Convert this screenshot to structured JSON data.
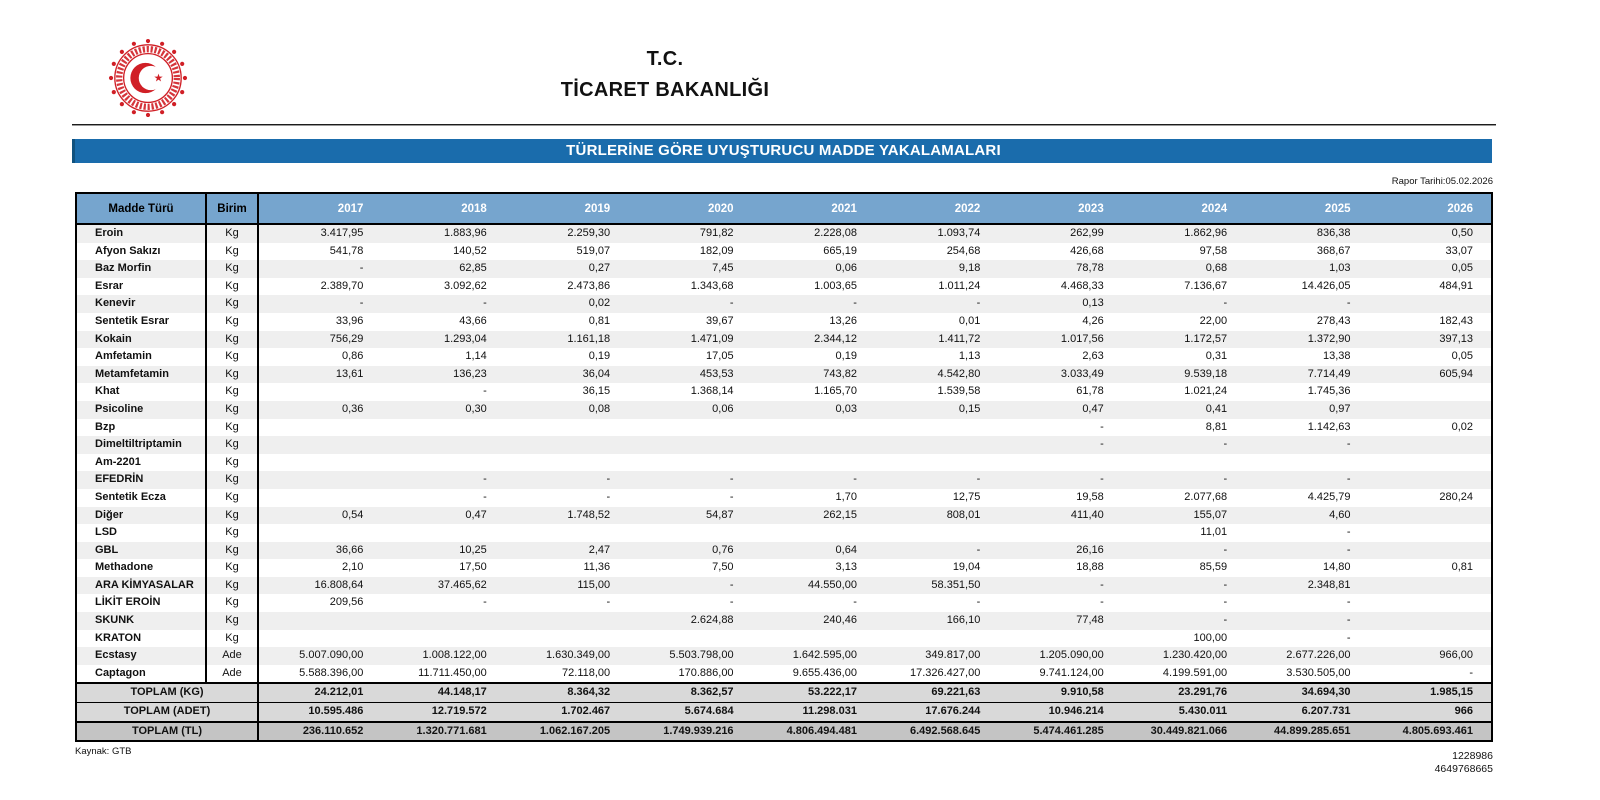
{
  "page": {
    "org_top": "T.C.",
    "org_bottom": "TİCARET BAKANLIĞI",
    "report_title": "TÜRLERİNE GÖRE UYUŞTURUCU MADDE YAKALAMALARI",
    "report_date": "Rapor Tarihi:05.02.2026",
    "source": "Kaynak: GTB",
    "footer_numbers": [
      "1228986",
      "4649768665"
    ]
  },
  "colors": {
    "title_bar_blue": "#1a6cac",
    "header_blue": "#76a5ce",
    "logo_red": "#d01f26",
    "total_row_gray": "#d9d9d9",
    "total_tl_gray": "#c4c4c4",
    "zebra_gray": "#efefef"
  },
  "table": {
    "col_headers": [
      "Madde Türü",
      "Birim",
      "2017",
      "2018",
      "2019",
      "2020",
      "2021",
      "2022",
      "2023",
      "2024",
      "2025",
      "2026"
    ],
    "rows": [
      {
        "name": "Eroin",
        "unit": "Kg",
        "values": [
          "3.417,95",
          "1.883,96",
          "2.259,30",
          "791,82",
          "2.228,08",
          "1.093,74",
          "262,99",
          "1.862,96",
          "836,38",
          "0,50"
        ]
      },
      {
        "name": "Afyon Sakızı",
        "unit": "Kg",
        "values": [
          "541,78",
          "140,52",
          "519,07",
          "182,09",
          "665,19",
          "254,68",
          "426,68",
          "97,58",
          "368,67",
          "33,07"
        ]
      },
      {
        "name": "Baz Morfin",
        "unit": "Kg",
        "values": [
          "-",
          "62,85",
          "0,27",
          "7,45",
          "0,06",
          "9,18",
          "78,78",
          "0,68",
          "1,03",
          "0,05"
        ]
      },
      {
        "name": "Esrar",
        "unit": "Kg",
        "values": [
          "2.389,70",
          "3.092,62",
          "2.473,86",
          "1.343,68",
          "1.003,65",
          "1.011,24",
          "4.468,33",
          "7.136,67",
          "14.426,05",
          "484,91"
        ]
      },
      {
        "name": "Kenevir",
        "unit": "Kg",
        "values": [
          "-",
          "-",
          "0,02",
          "-",
          "-",
          "-",
          "0,13",
          "-",
          "-",
          ""
        ]
      },
      {
        "name": "Sentetik Esrar",
        "unit": "Kg",
        "values": [
          "33,96",
          "43,66",
          "0,81",
          "39,67",
          "13,26",
          "0,01",
          "4,26",
          "22,00",
          "278,43",
          "182,43"
        ]
      },
      {
        "name": "Kokain",
        "unit": "Kg",
        "values": [
          "756,29",
          "1.293,04",
          "1.161,18",
          "1.471,09",
          "2.344,12",
          "1.411,72",
          "1.017,56",
          "1.172,57",
          "1.372,90",
          "397,13"
        ]
      },
      {
        "name": "Amfetamin",
        "unit": "Kg",
        "values": [
          "0,86",
          "1,14",
          "0,19",
          "17,05",
          "0,19",
          "1,13",
          "2,63",
          "0,31",
          "13,38",
          "0,05"
        ]
      },
      {
        "name": "Metamfetamin",
        "unit": "Kg",
        "values": [
          "13,61",
          "136,23",
          "36,04",
          "453,53",
          "743,82",
          "4.542,80",
          "3.033,49",
          "9.539,18",
          "7.714,49",
          "605,94"
        ]
      },
      {
        "name": "Khat",
        "unit": "Kg",
        "values": [
          "",
          "-",
          "36,15",
          "1.368,14",
          "1.165,70",
          "1.539,58",
          "61,78",
          "1.021,24",
          "1.745,36",
          ""
        ]
      },
      {
        "name": "Psicoline",
        "unit": "Kg",
        "values": [
          "0,36",
          "0,30",
          "0,08",
          "0,06",
          "0,03",
          "0,15",
          "0,47",
          "0,41",
          "0,97",
          ""
        ]
      },
      {
        "name": "Bzp",
        "unit": "Kg",
        "values": [
          "",
          "",
          "",
          "",
          "",
          "",
          "-",
          "8,81",
          "1.142,63",
          "0,02"
        ]
      },
      {
        "name": "Dimeltiltriptamin",
        "unit": "Kg",
        "values": [
          "",
          "",
          "",
          "",
          "",
          "",
          "-",
          "-",
          "-",
          ""
        ]
      },
      {
        "name": "Am-2201",
        "unit": "Kg",
        "values": [
          "",
          "",
          "",
          "",
          "",
          "",
          "",
          "",
          "",
          ""
        ]
      },
      {
        "name": "EFEDRİN",
        "unit": "Kg",
        "values": [
          "",
          "-",
          "-",
          "-",
          "-",
          "-",
          "-",
          "-",
          "-",
          ""
        ]
      },
      {
        "name": "Sentetik Ecza",
        "unit": "Kg",
        "values": [
          "",
          "-",
          "-",
          "-",
          "1,70",
          "12,75",
          "19,58",
          "2.077,68",
          "4.425,79",
          "280,24"
        ]
      },
      {
        "name": "Diğer",
        "unit": "Kg",
        "values": [
          "0,54",
          "0,47",
          "1.748,52",
          "54,87",
          "262,15",
          "808,01",
          "411,40",
          "155,07",
          "4,60",
          ""
        ]
      },
      {
        "name": "LSD",
        "unit": "Kg",
        "values": [
          "",
          "",
          "",
          "",
          "",
          "",
          "",
          "11,01",
          "-",
          ""
        ]
      },
      {
        "name": "GBL",
        "unit": "Kg",
        "values": [
          "36,66",
          "10,25",
          "2,47",
          "0,76",
          "0,64",
          "-",
          "26,16",
          "-",
          "-",
          ""
        ]
      },
      {
        "name": "Methadone",
        "unit": "Kg",
        "values": [
          "2,10",
          "17,50",
          "11,36",
          "7,50",
          "3,13",
          "19,04",
          "18,88",
          "85,59",
          "14,80",
          "0,81"
        ]
      },
      {
        "name": "ARA KİMYASALAR",
        "unit": "Kg",
        "values": [
          "16.808,64",
          "37.465,62",
          "115,00",
          "-",
          "44.550,00",
          "58.351,50",
          "-",
          "-",
          "2.348,81",
          ""
        ]
      },
      {
        "name": "LİKİT EROİN",
        "unit": "Kg",
        "values": [
          "209,56",
          "-",
          "-",
          "-",
          "-",
          "-",
          "-",
          "-",
          "-",
          ""
        ]
      },
      {
        "name": "SKUNK",
        "unit": "Kg",
        "values": [
          "",
          "",
          "",
          "2.624,88",
          "240,46",
          "166,10",
          "77,48",
          "-",
          "-",
          ""
        ]
      },
      {
        "name": "KRATON",
        "unit": "Kg",
        "values": [
          "",
          "",
          "",
          "",
          "",
          "",
          "",
          "100,00",
          "-",
          ""
        ]
      },
      {
        "name": "Ecstasy",
        "unit": "Ade",
        "values": [
          "5.007.090,00",
          "1.008.122,00",
          "1.630.349,00",
          "5.503.798,00",
          "1.642.595,00",
          "349.817,00",
          "1.205.090,00",
          "1.230.420,00",
          "2.677.226,00",
          "966,00"
        ]
      },
      {
        "name": "Captagon",
        "unit": "Ade",
        "values": [
          "5.588.396,00",
          "11.711.450,00",
          "72.118,00",
          "170.886,00",
          "9.655.436,00",
          "17.326.427,00",
          "9.741.124,00",
          "4.199.591,00",
          "3.530.505,00",
          "-"
        ]
      }
    ],
    "totals": [
      {
        "label": "TOPLAM (KG)",
        "values": [
          "24.212,01",
          "44.148,17",
          "8.364,32",
          "8.362,57",
          "53.222,17",
          "69.221,63",
          "9.910,58",
          "23.291,76",
          "34.694,30",
          "1.985,15"
        ]
      },
      {
        "label": "TOPLAM (ADET)",
        "values": [
          "10.595.486",
          "12.719.572",
          "1.702.467",
          "5.674.684",
          "11.298.031",
          "17.676.244",
          "10.946.214",
          "5.430.011",
          "6.207.731",
          "966"
        ]
      },
      {
        "label": "TOPLAM (TL)",
        "values": [
          "236.110.652",
          "1.320.771.681",
          "1.062.167.205",
          "1.749.939.216",
          "4.806.494.481",
          "6.492.568.645",
          "5.474.461.285",
          "30.449.821.066",
          "44.899.285.651",
          "4.805.693.461"
        ]
      }
    ]
  }
}
